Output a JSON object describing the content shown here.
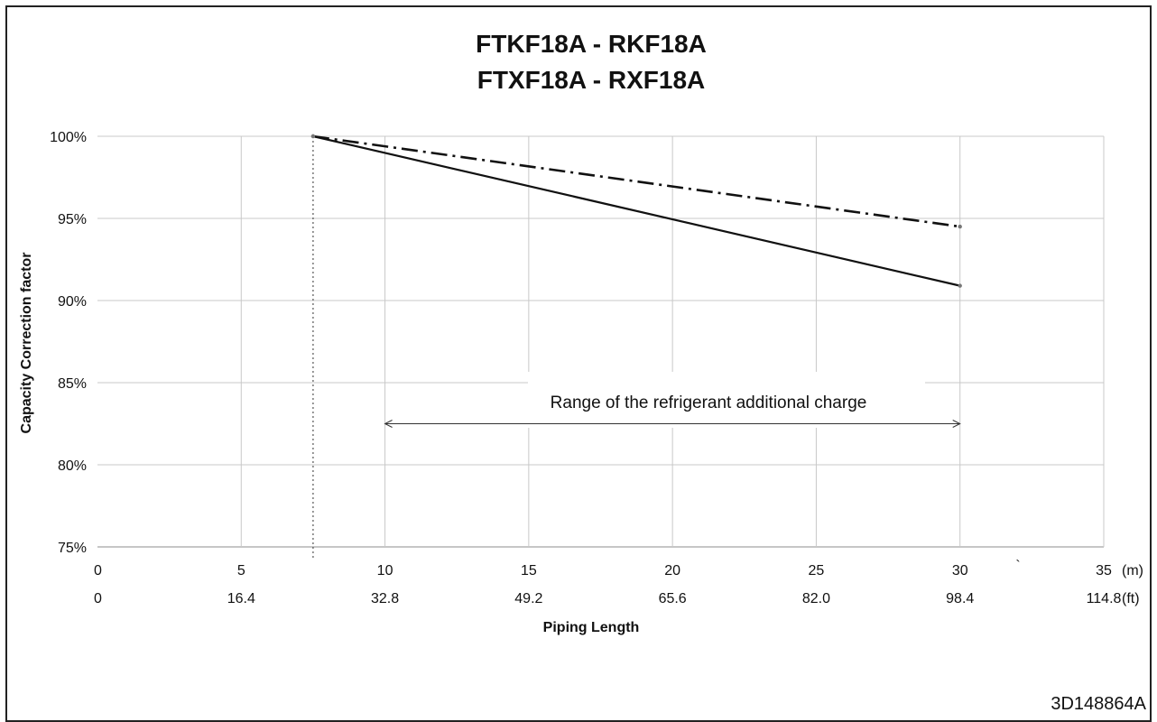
{
  "chart_data": {
    "type": "line",
    "title_lines": [
      "FTKF18A - RKF18A",
      "FTXF18A - RXF18A"
    ],
    "xlabel": "Piping Length",
    "ylabel": "Capacity Correction factor",
    "xlim": [
      0,
      35
    ],
    "ylim": [
      75,
      100
    ],
    "grid": true,
    "x_ticks_m": [
      "0",
      "5",
      "10",
      "15",
      "20",
      "25",
      "30",
      "35"
    ],
    "x_ticks_ft": [
      "0",
      "16.4",
      "32.8",
      "49.2",
      "65.6",
      "82.0",
      "98.4",
      "114.8"
    ],
    "x_unit_m": "(m)",
    "x_unit_ft": "(ft)",
    "y_ticks": [
      "75%",
      "80%",
      "85%",
      "90%",
      "95%",
      "100%"
    ],
    "series": [
      {
        "style": "solid",
        "x": [
          7.5,
          30
        ],
        "y": [
          100,
          90.9
        ]
      },
      {
        "style": "dash-dot",
        "x": [
          7.5,
          30
        ],
        "y": [
          100,
          94.5
        ]
      }
    ],
    "reference_line_x": 7.5,
    "range_arrow": {
      "x": [
        10,
        30
      ],
      "y": 82.5,
      "label": "Range of the refrigerant additional charge"
    },
    "stray_mark": "`"
  },
  "document_code": "3D148864A"
}
